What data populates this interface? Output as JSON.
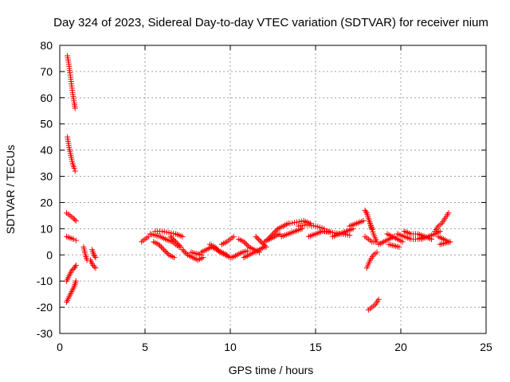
{
  "chart_data": {
    "type": "scatter",
    "title": "Day 324 of 2023, Sidereal Day-to-day VTEC variation (SDTVAR) for receiver nium",
    "xlabel": "GPS time / hours",
    "ylabel": "SDTVAR / TECUs",
    "xlim": [
      0,
      25
    ],
    "ylim": [
      -30,
      80
    ],
    "xticks": [
      0,
      5,
      10,
      15,
      20,
      25
    ],
    "yticks": [
      -30,
      -20,
      -10,
      0,
      10,
      20,
      30,
      40,
      50,
      60,
      70,
      80
    ],
    "grid": true,
    "marker": "+",
    "color": "#ff0000",
    "segments": [
      {
        "x": [
          0.45,
          0.55,
          0.65,
          0.75,
          0.85,
          0.9
        ],
        "y": [
          76,
          72,
          67,
          62,
          58,
          56
        ]
      },
      {
        "x": [
          0.45,
          0.55,
          0.65,
          0.75,
          0.85,
          0.9
        ],
        "y": [
          45,
          41,
          38,
          35,
          33,
          32
        ]
      },
      {
        "x": [
          0.4,
          0.6,
          0.8,
          0.95
        ],
        "y": [
          16,
          15,
          14,
          13
        ]
      },
      {
        "x": [
          0.4,
          0.6,
          0.8,
          0.95
        ],
        "y": [
          7,
          6.5,
          6,
          5.5
        ]
      },
      {
        "x": [
          0.4,
          0.55,
          0.7,
          0.85,
          0.95
        ],
        "y": [
          -10,
          -8,
          -6,
          -5,
          -4
        ]
      },
      {
        "x": [
          0.4,
          0.55,
          0.7,
          0.85,
          0.95
        ],
        "y": [
          -18,
          -16,
          -14,
          -12,
          -10
        ]
      },
      {
        "x": [
          1.4,
          1.5,
          1.6
        ],
        "y": [
          3,
          0,
          -2
        ]
      },
      {
        "x": [
          1.9,
          2.0,
          2.1
        ],
        "y": [
          2,
          0,
          -1
        ]
      },
      {
        "x": [
          1.8,
          1.95,
          2.1
        ],
        "y": [
          -2,
          -4,
          -5
        ]
      },
      {
        "x": [
          4.8,
          5.0,
          5.2
        ],
        "y": [
          5,
          6,
          7
        ]
      },
      {
        "x": [
          5.3,
          5.6,
          5.9,
          6.2,
          6.6,
          7.0
        ],
        "y": [
          8,
          7.5,
          7,
          6,
          5,
          3
        ]
      },
      {
        "x": [
          5.6,
          6.0,
          6.4,
          6.8,
          7.2
        ],
        "y": [
          9,
          9,
          8.5,
          8,
          7
        ]
      },
      {
        "x": [
          5.5,
          5.8,
          6.1,
          6.4,
          6.7
        ],
        "y": [
          5,
          4,
          2,
          0,
          -1
        ]
      },
      {
        "x": [
          6.5,
          6.8,
          7.1
        ],
        "y": [
          7,
          5,
          3
        ]
      },
      {
        "x": [
          7.2,
          7.5,
          7.8,
          8.1,
          8.4
        ],
        "y": [
          2,
          0,
          -1,
          -2,
          -1
        ]
      },
      {
        "x": [
          7.7,
          8.0,
          8.3
        ],
        "y": [
          1,
          0.5,
          0
        ]
      },
      {
        "x": [
          8.3,
          8.6,
          8.9,
          9.2,
          9.5,
          9.8
        ],
        "y": [
          1,
          2,
          3,
          2,
          1,
          0
        ]
      },
      {
        "x": [
          8.8,
          9.1,
          9.4,
          9.7,
          10.0
        ],
        "y": [
          4,
          3,
          1,
          0,
          -1
        ]
      },
      {
        "x": [
          9.5,
          9.8,
          10.0,
          10.2
        ],
        "y": [
          4,
          5,
          6,
          7
        ]
      },
      {
        "x": [
          10.1,
          10.4,
          10.7,
          11.0
        ],
        "y": [
          -1,
          0,
          1,
          1.5
        ]
      },
      {
        "x": [
          10.5,
          10.8,
          11.1,
          11.4,
          11.7
        ],
        "y": [
          6,
          5,
          3,
          2,
          1
        ]
      },
      {
        "x": [
          10.8,
          11.1,
          11.4,
          11.7,
          12.0
        ],
        "y": [
          -1,
          0,
          1,
          2,
          3
        ]
      },
      {
        "x": [
          11.5,
          11.8,
          12.1
        ],
        "y": [
          7,
          5,
          3
        ]
      },
      {
        "x": [
          12.0,
          12.3,
          12.6,
          12.9
        ],
        "y": [
          5,
          6,
          7,
          8
        ]
      },
      {
        "x": [
          12.2,
          12.5,
          12.8,
          13.1,
          13.4
        ],
        "y": [
          6,
          8,
          10,
          11,
          12
        ]
      },
      {
        "x": [
          13.0,
          13.4,
          13.8,
          14.2
        ],
        "y": [
          7,
          8,
          9,
          10
        ]
      },
      {
        "x": [
          13.5,
          13.9,
          14.3,
          14.7
        ],
        "y": [
          12,
          12.5,
          13,
          12
        ]
      },
      {
        "x": [
          14.0,
          14.5,
          15.0,
          15.5
        ],
        "y": [
          11,
          11.5,
          11,
          10
        ]
      },
      {
        "x": [
          14.6,
          15.0,
          15.4,
          15.8
        ],
        "y": [
          7,
          8,
          9,
          9
        ]
      },
      {
        "x": [
          15.5,
          16.0,
          16.5,
          17.0
        ],
        "y": [
          9,
          8.5,
          8,
          7.5
        ]
      },
      {
        "x": [
          16.0,
          16.4,
          16.8,
          17.2
        ],
        "y": [
          7,
          8,
          9,
          10
        ]
      },
      {
        "x": [
          17.0,
          17.4,
          17.8
        ],
        "y": [
          11,
          12,
          13
        ]
      },
      {
        "x": [
          17.9,
          18.0,
          18.1,
          18.2,
          18.3
        ],
        "y": [
          17,
          16,
          14,
          12,
          10
        ]
      },
      {
        "x": [
          17.9,
          18.1,
          18.3,
          18.5
        ],
        "y": [
          7,
          6,
          5,
          5
        ]
      },
      {
        "x": [
          18.2,
          18.4,
          18.6
        ],
        "y": [
          12,
          8,
          5
        ]
      },
      {
        "x": [
          18.0,
          18.2,
          18.4,
          18.6
        ],
        "y": [
          -5,
          -2,
          0,
          1
        ]
      },
      {
        "x": [
          18.1,
          18.3,
          18.5,
          18.7
        ],
        "y": [
          -21,
          -20,
          -19,
          -17
        ]
      },
      {
        "x": [
          18.7,
          19.0,
          19.3,
          19.6
        ],
        "y": [
          4,
          5,
          6,
          7
        ]
      },
      {
        "x": [
          19.2,
          19.5,
          19.8,
          20.1
        ],
        "y": [
          8,
          7,
          6,
          5
        ]
      },
      {
        "x": [
          19.3,
          19.6,
          19.9
        ],
        "y": [
          4,
          3.5,
          3
        ]
      },
      {
        "x": [
          19.8,
          20.2,
          20.6,
          21.0,
          21.4
        ],
        "y": [
          8,
          7,
          6,
          6,
          7
        ]
      },
      {
        "x": [
          20.2,
          20.6,
          21.0,
          21.4,
          21.8
        ],
        "y": [
          9,
          8,
          8,
          7,
          6
        ]
      },
      {
        "x": [
          21.2,
          21.6,
          22.0,
          22.3
        ],
        "y": [
          6,
          7,
          8,
          9
        ]
      },
      {
        "x": [
          22.0,
          22.2,
          22.4,
          22.6,
          22.8
        ],
        "y": [
          9,
          11,
          12,
          14,
          16
        ]
      },
      {
        "x": [
          22.2,
          22.5,
          22.8
        ],
        "y": [
          7,
          6,
          5
        ]
      },
      {
        "x": [
          22.3,
          22.6,
          22.9
        ],
        "y": [
          4,
          4.5,
          5
        ]
      }
    ]
  }
}
